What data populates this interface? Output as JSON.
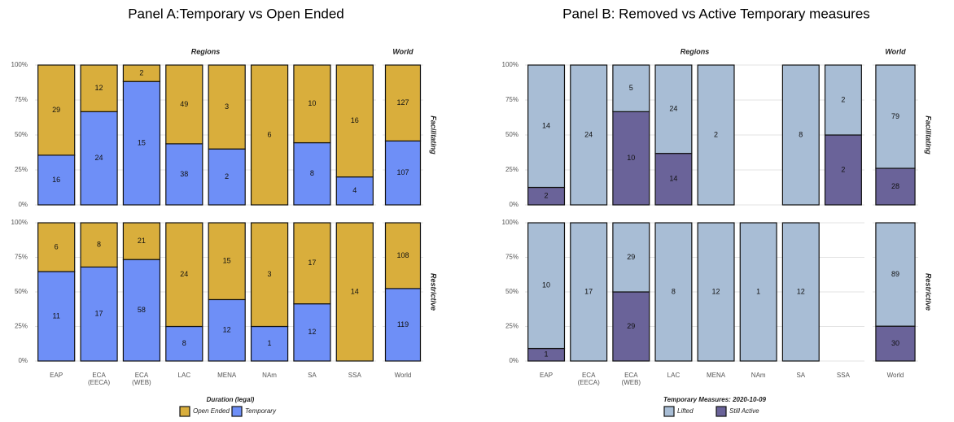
{
  "chart_data": [
    {
      "type": "stacked-percent-bar",
      "title": "Panel A:Temporary vs Open Ended",
      "facets": [
        {
          "label": "Regions",
          "categories": [
            "EAP",
            "ECA\n(EECA)",
            "ECA\n(WEB)",
            "LAC",
            "MENA",
            "NAm",
            "SA",
            "SSA"
          ]
        },
        {
          "label": "World",
          "categories": [
            "World"
          ]
        }
      ],
      "rows": [
        "Facilitating",
        "Restrictive"
      ],
      "ylim": [
        0,
        100
      ],
      "yticks": [
        {
          "value": 0,
          "label": "0%"
        },
        {
          "value": 25,
          "label": "25%"
        },
        {
          "value": 50,
          "label": "50%"
        },
        {
          "value": 75,
          "label": "75%"
        },
        {
          "value": 100,
          "label": "100%"
        }
      ],
      "grid": true,
      "legend_title": "Duration (legal)",
      "series": [
        {
          "name": "Open Ended",
          "color": "#d9ae3c",
          "values": [
            [
              29,
              12,
              2,
              49,
              3,
              6,
              10,
              16,
              127
            ],
            [
              6,
              8,
              21,
              24,
              15,
              3,
              17,
              14,
              108
            ]
          ]
        },
        {
          "name": "Temporary",
          "color": "#6e8ff7",
          "values": [
            [
              16,
              24,
              15,
              38,
              2,
              0,
              8,
              4,
              107
            ],
            [
              11,
              17,
              58,
              8,
              12,
              1,
              12,
              0,
              119
            ]
          ]
        }
      ]
    },
    {
      "type": "stacked-percent-bar",
      "title": "Panel B: Removed vs Active Temporary measures",
      "facets": [
        {
          "label": "Regions",
          "categories": [
            "EAP",
            "ECA\n(EECA)",
            "ECA\n(WEB)",
            "LAC",
            "MENA",
            "NAm",
            "SA",
            "SSA"
          ]
        },
        {
          "label": "World",
          "categories": [
            "World"
          ]
        }
      ],
      "rows": [
        "Facilitating",
        "Restrictive"
      ],
      "ylim": [
        0,
        100
      ],
      "yticks": [
        {
          "value": 0,
          "label": "0%"
        },
        {
          "value": 25,
          "label": "25%"
        },
        {
          "value": 50,
          "label": "50%"
        },
        {
          "value": 75,
          "label": "75%"
        },
        {
          "value": 100,
          "label": "100%"
        }
      ],
      "grid": true,
      "legend_title": "Temporary Measures: 2020-10-09",
      "series": [
        {
          "name": "Lifted",
          "color": "#a8bdd5",
          "values": [
            [
              14,
              24,
              5,
              24,
              2,
              null,
              8,
              2,
              79
            ],
            [
              10,
              17,
              29,
              8,
              12,
              1,
              12,
              null,
              89
            ]
          ]
        },
        {
          "name": "Still Active",
          "color": "#6a6399",
          "values": [
            [
              2,
              0,
              10,
              14,
              0,
              null,
              0,
              2,
              28
            ],
            [
              1,
              0,
              29,
              0,
              0,
              0,
              0,
              null,
              30
            ]
          ]
        }
      ]
    }
  ]
}
